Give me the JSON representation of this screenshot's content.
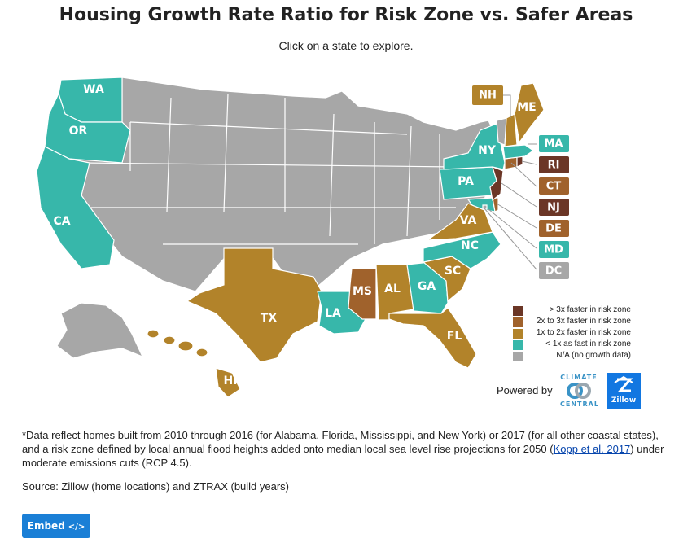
{
  "title": "Housing Growth Rate Ratio for Risk Zone vs. Safer Areas",
  "subtitle": "Click on a state to explore.",
  "colors": {
    "gt3x": "#6b3626",
    "x2to3": "#a0622c",
    "x1to2": "#b2832a",
    "lt1x": "#37b7aa",
    "na": "#a7a7a7"
  },
  "states": {
    "WA": {
      "label": "WA",
      "category": "lt1x"
    },
    "OR": {
      "label": "OR",
      "category": "lt1x"
    },
    "CA": {
      "label": "CA",
      "category": "lt1x"
    },
    "TX": {
      "label": "TX",
      "category": "x1to2"
    },
    "LA": {
      "label": "LA",
      "category": "lt1x"
    },
    "MS": {
      "label": "MS",
      "category": "x2to3"
    },
    "AL": {
      "label": "AL",
      "category": "x1to2"
    },
    "GA": {
      "label": "GA",
      "category": "lt1x"
    },
    "FL": {
      "label": "FL",
      "category": "x1to2"
    },
    "SC": {
      "label": "SC",
      "category": "x1to2"
    },
    "NC": {
      "label": "NC",
      "category": "lt1x"
    },
    "VA": {
      "label": "VA",
      "category": "x1to2"
    },
    "PA": {
      "label": "PA",
      "category": "lt1x"
    },
    "NY": {
      "label": "NY",
      "category": "lt1x"
    },
    "ME": {
      "label": "ME",
      "category": "x1to2"
    },
    "HI": {
      "label": "HI",
      "category": "x1to2"
    },
    "NH": {
      "label": "NH",
      "category": "x1to2"
    },
    "MA": {
      "label": "MA",
      "category": "lt1x"
    },
    "RI": {
      "label": "RI",
      "category": "gt3x"
    },
    "CT": {
      "label": "CT",
      "category": "x2to3"
    },
    "NJ": {
      "label": "NJ",
      "category": "gt3x"
    },
    "DE": {
      "label": "DE",
      "category": "x2to3"
    },
    "MD": {
      "label": "MD",
      "category": "lt1x"
    },
    "DC": {
      "label": "DC",
      "category": "na"
    }
  },
  "legend": [
    {
      "label": "> 3x faster in risk zone",
      "category": "gt3x"
    },
    {
      "label": "2x to 3x faster in risk zone",
      "category": "x2to3"
    },
    {
      "label": "1x to 2x faster in risk zone",
      "category": "x1to2"
    },
    {
      "label": "< 1x as fast in risk zone",
      "category": "lt1x"
    },
    {
      "label": "N/A (no growth data)",
      "category": "na"
    }
  ],
  "powered_by": "Powered by",
  "climate_central": {
    "line1": "CLIMATE",
    "line2": "CENTRAL"
  },
  "zillow": "Zillow",
  "footnote": {
    "part1": "*Data reflect homes built from 2010 through 2016 (for Alabama, Florida, Mississippi, and New York) or 2017 (for all other coastal states), and a risk zone defined by local annual flood heights added onto median local sea level rise projections for 2050 (",
    "link": "Kopp et al. 2017",
    "part2": ") under moderate emissions cuts (RCP 4.5)."
  },
  "source": "Source: Zillow (home locations) and ZTRAX (build years)",
  "embed": {
    "label": "Embed",
    "code": "</>"
  }
}
